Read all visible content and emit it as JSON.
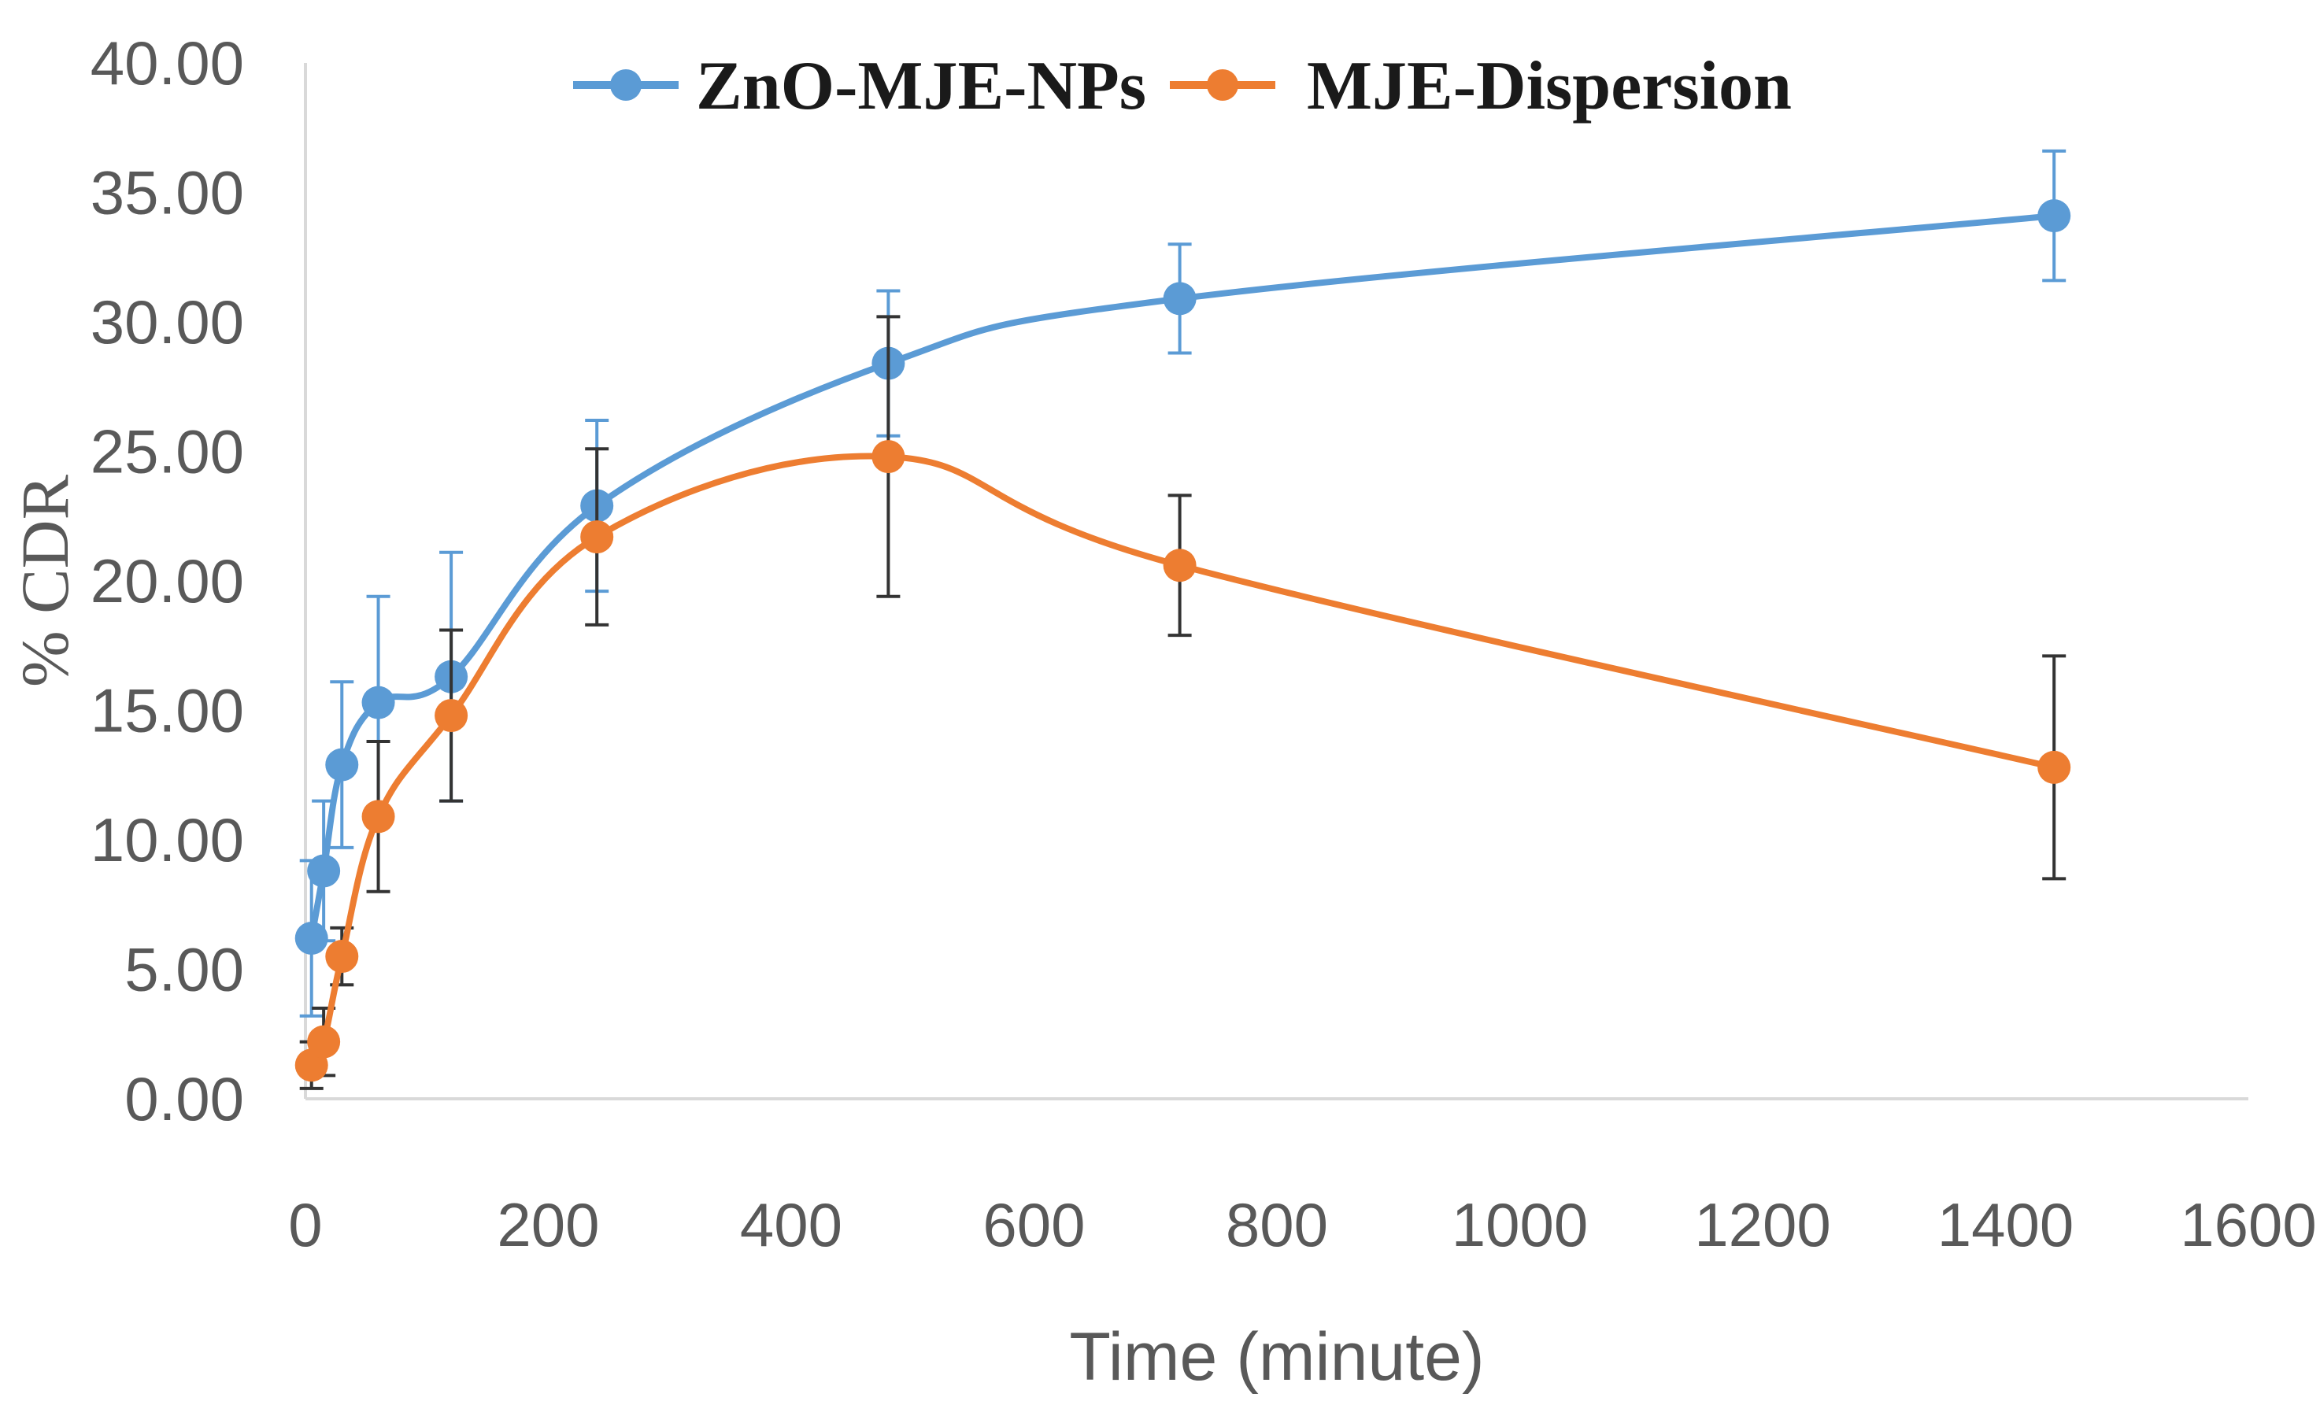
{
  "chart_data": {
    "type": "line",
    "title": "",
    "xlabel": "Time (minute)",
    "ylabel": "% CDR",
    "xlim": [
      0,
      1600
    ],
    "ylim": [
      0,
      40
    ],
    "x_ticks": [
      "0",
      "200",
      "400",
      "600",
      "800",
      "1000",
      "1200",
      "1400",
      "1600"
    ],
    "y_ticks": [
      "0.00",
      "5.00",
      "10.00",
      "15.00",
      "20.00",
      "25.00",
      "30.00",
      "35.00",
      "40.00"
    ],
    "legend_position": "top",
    "grid": false,
    "series": [
      {
        "name": "ZnO-MJE-NPs",
        "color": "#5B9BD5",
        "x": [
          5,
          15,
          30,
          60,
          120,
          240,
          480,
          720,
          1440
        ],
        "y": [
          6.2,
          8.8,
          12.9,
          15.3,
          16.3,
          22.9,
          28.4,
          30.9,
          34.1
        ],
        "err": [
          3.0,
          2.7,
          3.2,
          4.1,
          4.8,
          3.3,
          2.8,
          2.1,
          2.5
        ]
      },
      {
        "name": "MJE-Dispersion",
        "color": "#ED7D31",
        "x": [
          5,
          15,
          30,
          60,
          120,
          240,
          480,
          720,
          1440
        ],
        "y": [
          1.3,
          2.2,
          5.5,
          10.9,
          14.8,
          21.7,
          24.8,
          20.6,
          12.8
        ],
        "err": [
          0.9,
          1.3,
          1.1,
          2.9,
          3.3,
          3.4,
          5.4,
          2.7,
          4.3
        ]
      }
    ]
  }
}
